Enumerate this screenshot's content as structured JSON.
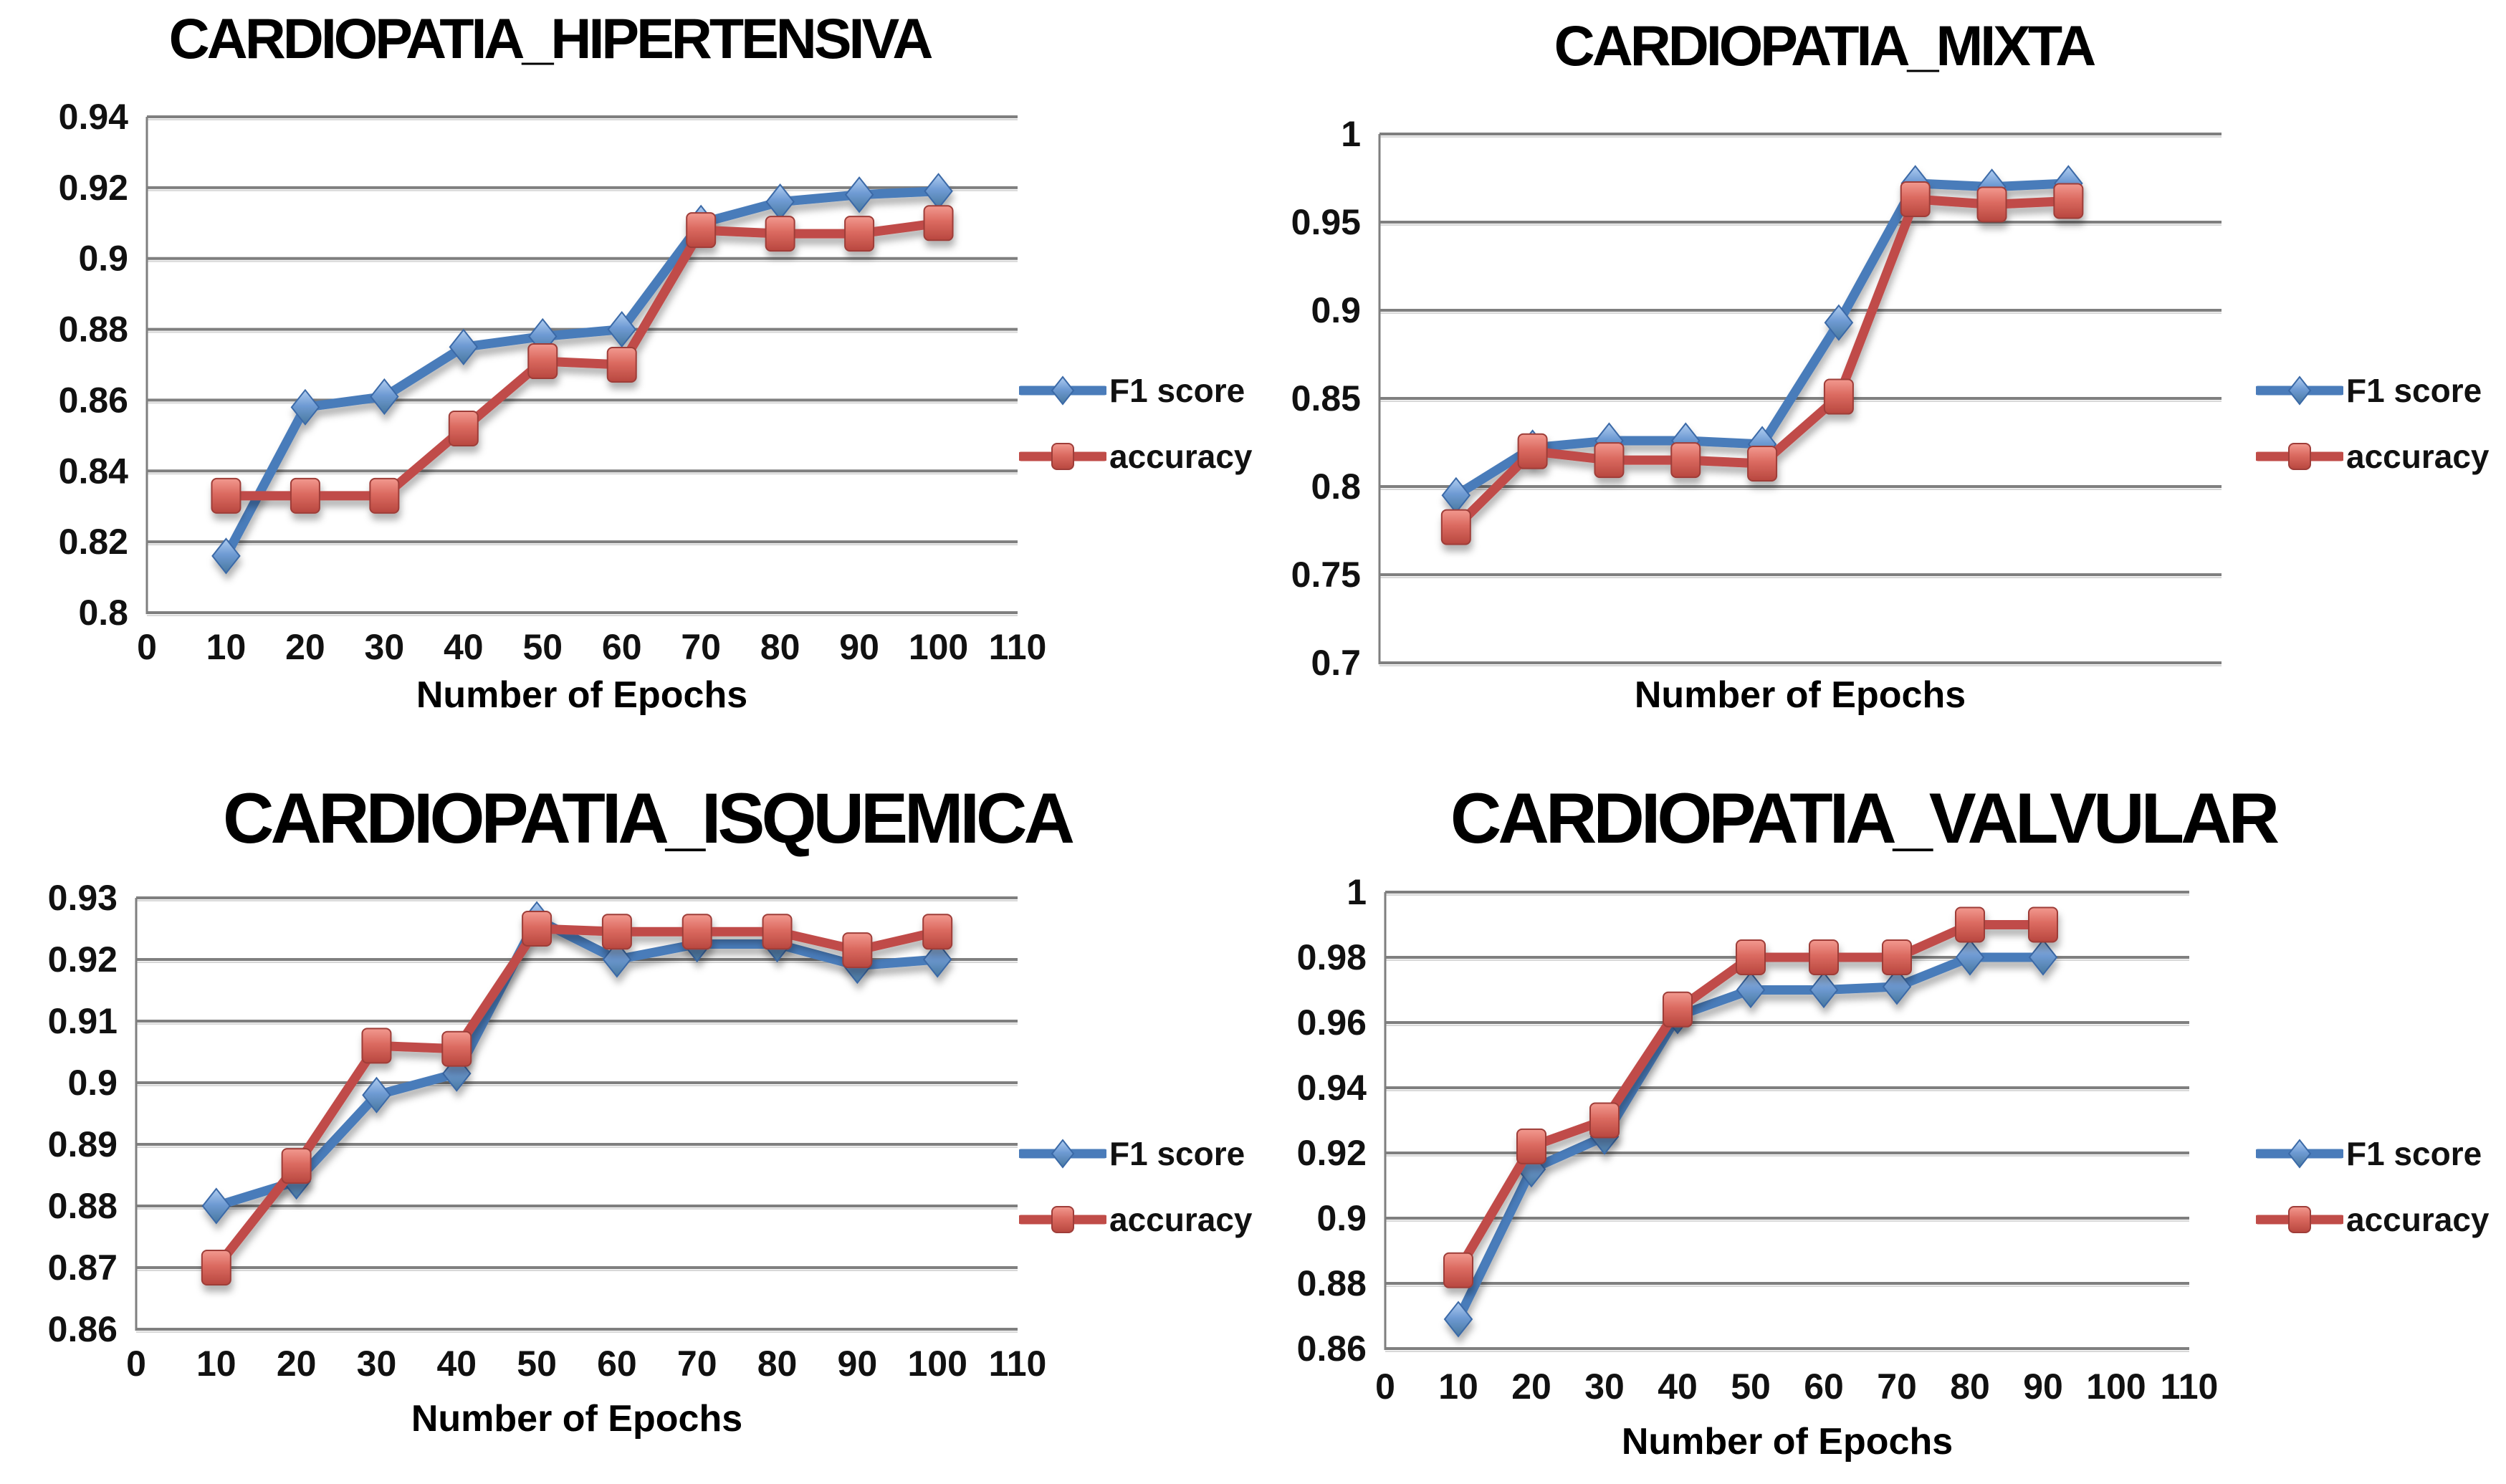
{
  "colors": {
    "f1_line": "#4a7cba",
    "f1_marker_fill": "#7fa6da",
    "accuracy_line": "#c04c48",
    "accuracy_marker_fill": "#e2766d",
    "grid": "#7f7f7f",
    "text": "#111111"
  },
  "chart_data": [
    {
      "id": "hipertensiva",
      "type": "line",
      "title": "CARDIOPATIA_HIPERTENSIVA",
      "xlabel": "Number of Epochs",
      "x": [
        10,
        20,
        30,
        40,
        50,
        60,
        70,
        80,
        90,
        100
      ],
      "series": [
        {
          "name": "F1 score",
          "color": "#4a7cba",
          "marker": "diamond",
          "values": [
            0.816,
            0.858,
            0.861,
            0.875,
            0.878,
            0.88,
            0.91,
            0.916,
            0.918,
            0.919
          ]
        },
        {
          "name": "accuracy",
          "color": "#c04c48",
          "marker": "square",
          "values": [
            0.833,
            0.833,
            0.833,
            0.852,
            0.871,
            0.87,
            0.908,
            0.907,
            0.907,
            0.91
          ]
        }
      ],
      "xlim": [
        0,
        110
      ],
      "xticks": [
        "0",
        "10",
        "20",
        "30",
        "40",
        "50",
        "60",
        "70",
        "80",
        "90",
        "100",
        "110"
      ],
      "ylim": [
        0.8,
        0.94
      ],
      "ystep": 0.02,
      "ytick_labels": [
        "0.94",
        "0.92",
        "0.9",
        "0.88",
        "0.86",
        "0.84",
        "0.82",
        "0.8"
      ],
      "grid": true,
      "legend_position": "right"
    },
    {
      "id": "mixta",
      "type": "line",
      "title": "CARDIOPATIA_MIXTA",
      "xlabel": "Number of Epochs",
      "x": [
        10,
        20,
        30,
        40,
        50,
        60,
        70,
        80,
        90
      ],
      "series": [
        {
          "name": "F1 score",
          "color": "#4a7cba",
          "marker": "diamond",
          "values": [
            0.795,
            0.822,
            0.826,
            0.826,
            0.824,
            0.893,
            0.972,
            0.97,
            0.972
          ]
        },
        {
          "name": "accuracy",
          "color": "#c04c48",
          "marker": "square",
          "values": [
            0.777,
            0.82,
            0.815,
            0.815,
            0.813,
            0.851,
            0.963,
            0.96,
            0.962
          ]
        }
      ],
      "xlim": [
        0,
        110
      ],
      "xticks": [],
      "ylim": [
        0.7,
        1.0
      ],
      "ystep": 0.05,
      "ytick_labels": [
        "1",
        "0.95",
        "0.9",
        "0.85",
        "0.8",
        "0.75",
        "0.7"
      ],
      "grid": true,
      "legend_position": "right"
    },
    {
      "id": "isquemica",
      "type": "line",
      "title": "CARDIOPATIA_ISQUEMICA",
      "xlabel": "Number of Epochs",
      "x": [
        10,
        20,
        30,
        40,
        50,
        60,
        70,
        80,
        90,
        100
      ],
      "series": [
        {
          "name": "F1 score",
          "color": "#4a7cba",
          "marker": "diamond",
          "values": [
            0.88,
            0.884,
            0.898,
            0.9015,
            0.9265,
            0.92,
            0.9225,
            0.9225,
            0.919,
            0.92
          ]
        },
        {
          "name": "accuracy",
          "color": "#c04c48",
          "marker": "square",
          "values": [
            0.87,
            0.8865,
            0.906,
            0.9055,
            0.925,
            0.9245,
            0.9245,
            0.9245,
            0.9215,
            0.9245
          ]
        }
      ],
      "xlim": [
        0,
        110
      ],
      "xticks": [
        "0",
        "10",
        "20",
        "30",
        "40",
        "50",
        "60",
        "70",
        "80",
        "90",
        "100",
        "110"
      ],
      "ylim": [
        0.86,
        0.93
      ],
      "ystep": 0.01,
      "ytick_labels": [
        "0.93",
        "0.92",
        "0.91",
        "0.9",
        "0.89",
        "0.88",
        "0.87",
        "0.86"
      ],
      "grid": true,
      "legend_position": "right"
    },
    {
      "id": "valvular",
      "type": "line",
      "title": "CARDIOPATIA_VALVULAR",
      "xlabel": "Number of Epochs",
      "x": [
        10,
        20,
        30,
        40,
        50,
        60,
        70,
        80,
        90
      ],
      "series": [
        {
          "name": "F1 score",
          "color": "#4a7cba",
          "marker": "diamond",
          "values": [
            0.869,
            0.915,
            0.925,
            0.962,
            0.97,
            0.97,
            0.971,
            0.98,
            0.98
          ]
        },
        {
          "name": "accuracy",
          "color": "#c04c48",
          "marker": "square",
          "values": [
            0.884,
            0.922,
            0.93,
            0.964,
            0.98,
            0.98,
            0.98,
            0.99,
            0.99
          ]
        }
      ],
      "xlim": [
        0,
        110
      ],
      "xticks": [
        "0",
        "10",
        "20",
        "30",
        "40",
        "50",
        "60",
        "70",
        "80",
        "90",
        "100",
        "110"
      ],
      "ylim": [
        0.86,
        1.0
      ],
      "ystep": 0.02,
      "ytick_labels": [
        "1",
        "0.98",
        "0.96",
        "0.94",
        "0.92",
        "0.9",
        "0.88",
        "0.86"
      ],
      "grid": true,
      "legend_position": "right"
    }
  ]
}
